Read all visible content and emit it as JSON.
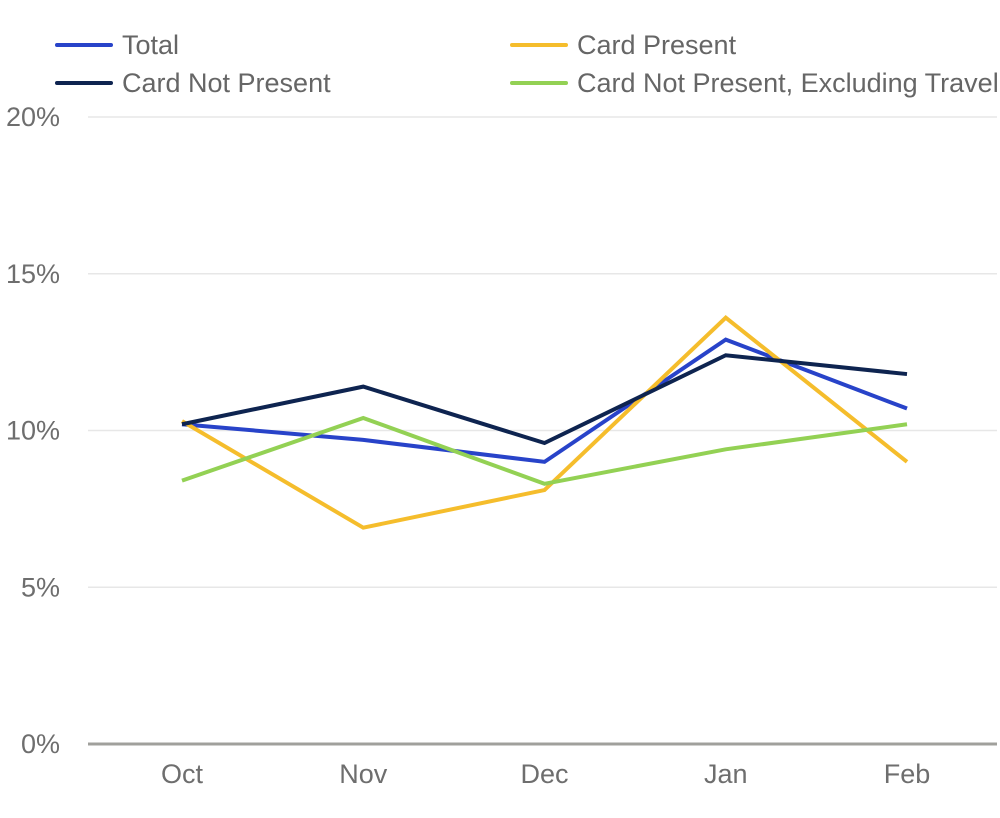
{
  "chart_data": {
    "type": "line",
    "categories": [
      "Oct",
      "Nov",
      "Dec",
      "Jan",
      "Feb"
    ],
    "series": [
      {
        "name": "Total",
        "color": "#2843C9",
        "values": [
          10.2,
          9.7,
          9.0,
          12.9,
          10.7
        ]
      },
      {
        "name": "Card Present",
        "color": "#F5BD2C",
        "values": [
          10.3,
          6.9,
          8.1,
          13.6,
          9.0
        ]
      },
      {
        "name": "Card Not Present",
        "color": "#0E2450",
        "values": [
          10.2,
          11.4,
          9.6,
          12.4,
          11.8
        ]
      },
      {
        "name": "Card Not Present, Excluding Travel",
        "color": "#93D154",
        "values": [
          8.4,
          10.4,
          8.3,
          9.4,
          10.2
        ]
      }
    ],
    "title": "",
    "xlabel": "",
    "ylabel": "",
    "ylim": [
      0,
      20
    ],
    "yticks": [
      0,
      5,
      10,
      15,
      20
    ],
    "ytick_labels": [
      "0%",
      "5%",
      "10%",
      "15%",
      "20%"
    ],
    "grid": true,
    "legend_position": "top",
    "style": {
      "grid_color": "#E7E7E7",
      "axis_line_color": "#A0A09C",
      "tick_label_color": "#6E6E6E",
      "legend_text_color": "#666666",
      "line_width": 4
    }
  }
}
